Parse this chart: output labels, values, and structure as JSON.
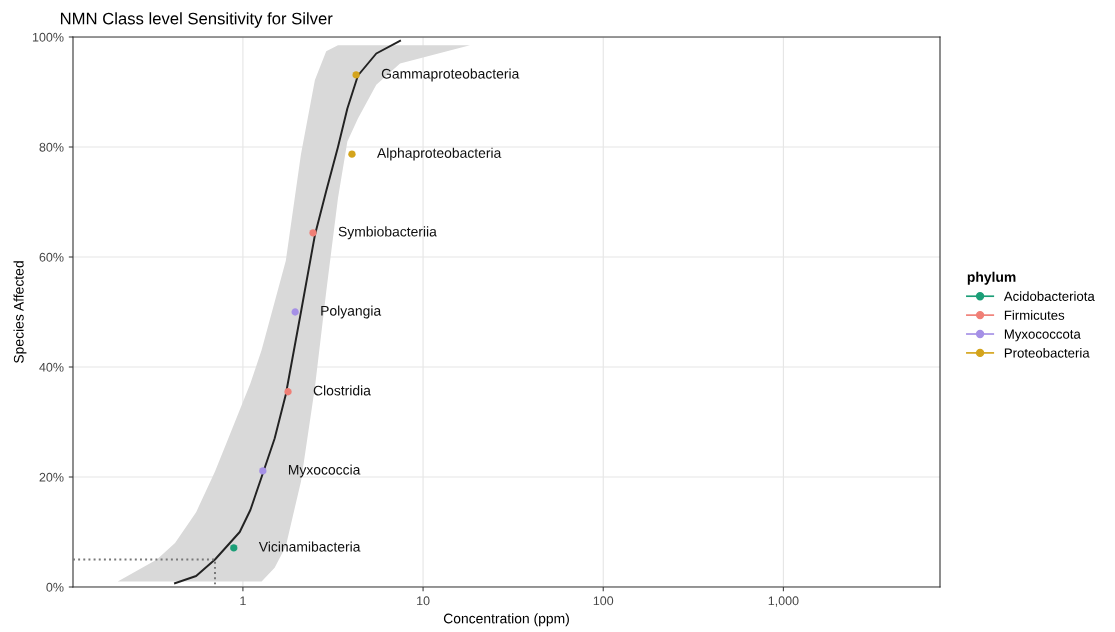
{
  "chart_data": {
    "type": "scatter",
    "title": "NMN Class level Sensitivity for Silver",
    "xlabel": "Concentration (ppm)",
    "ylabel": "Species Affected",
    "legend_title": "phylum",
    "log": "x",
    "grid": true,
    "legend": "right",
    "xlim": [
      0.114,
      7400
    ],
    "xticks": [
      1,
      10,
      100,
      {
        "value": 1000,
        "label": "1,000"
      }
    ],
    "ylim": [
      0,
      100
    ],
    "yticks": [
      {
        "value": 0,
        "label": "0%"
      },
      {
        "value": 20,
        "label": "20%"
      },
      {
        "value": 40,
        "label": "40%"
      },
      {
        "value": 60,
        "label": "60%"
      },
      {
        "value": 80,
        "label": "80%"
      },
      {
        "value": 100,
        "label": "100%"
      }
    ],
    "series": [
      {
        "type": "line",
        "color": "#222222",
        "marker": "none",
        "line_style": "solid",
        "x": [
          0.202,
          0.333,
          0.42,
          0.55,
          0.7,
          0.82,
          0.96,
          1.1,
          1.27,
          1.5,
          1.73,
          2.1,
          2.51,
          2.9,
          3.37,
          3.8,
          4.35,
          5.5,
          7.45,
          18.2
        ],
        "values": [
          null,
          null,
          0.7,
          2,
          5,
          7.5,
          10,
          14,
          20,
          27,
          35,
          50,
          64,
          72,
          80,
          87,
          93,
          97,
          99.3,
          null
        ],
        "lower": [
          1,
          1,
          1,
          1,
          1,
          1,
          1,
          1,
          1,
          3.5,
          7.4,
          19.2,
          36.3,
          53.7,
          70.7,
          81,
          85.2,
          91.3,
          95.2,
          98.5
        ],
        "upper": [
          1,
          5,
          8,
          13.6,
          21,
          26.6,
          32.2,
          37,
          43.1,
          51.8,
          59.3,
          78.7,
          92.2,
          97.4,
          98.5,
          98.5,
          98.5,
          98.5,
          98.5,
          98.5
        ]
      },
      {
        "type": "line",
        "color": "#777777",
        "marker": "none",
        "line_style": "dotted",
        "x": [
          0.114,
          0.7,
          0.7
        ],
        "values": [
          5,
          5,
          0
        ]
      },
      {
        "name": "Acidobacteriota",
        "marker": "circle",
        "color": "#1b9e77",
        "x": [
          0.89
        ],
        "values": [
          7.1
        ]
      },
      {
        "name": "Firmicutes",
        "marker": "circle",
        "color": "#f07f76",
        "x": [
          1.78,
          2.45
        ],
        "values": [
          35.5,
          64.4
        ]
      },
      {
        "name": "Myxococcota",
        "marker": "circle",
        "color": "#a590e6",
        "x": [
          1.29,
          1.95
        ],
        "values": [
          21.1,
          50
        ]
      },
      {
        "name": "Proteobacteria",
        "marker": "circle",
        "color": "#d4a41c",
        "x": [
          4.03,
          4.25
        ],
        "values": [
          78.7,
          93.1
        ]
      }
    ],
    "annotations": [
      {
        "text": "Vicinamibacteria",
        "x": 0.89,
        "y": 7.1
      },
      {
        "text": "Myxococcia",
        "x": 1.29,
        "y": 21.1
      },
      {
        "text": "Clostridia",
        "x": 1.78,
        "y": 35.5
      },
      {
        "text": "Polyangia",
        "x": 1.95,
        "y": 50
      },
      {
        "text": "Symbiobacteriia",
        "x": 2.45,
        "y": 64.4
      },
      {
        "text": "Alphaproteobacteria",
        "x": 4.03,
        "y": 78.7
      },
      {
        "text": "Gammaproteobacteria",
        "x": 4.25,
        "y": 93.1
      }
    ]
  }
}
